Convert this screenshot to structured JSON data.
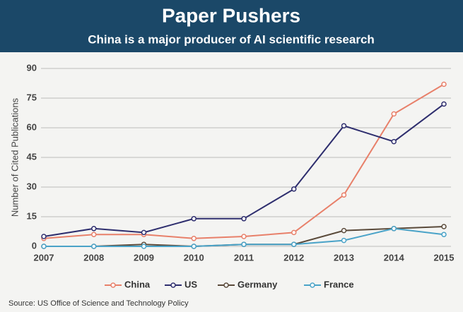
{
  "chart_data": {
    "type": "line",
    "title": "Paper Pushers",
    "subtitle": "China is a major producer of AI scientific research",
    "y_label": "Number of Cited Publications",
    "source": "Source: US Office of Science and Technology Policy",
    "x": [
      2007,
      2008,
      2009,
      2010,
      2011,
      2012,
      2013,
      2014,
      2015
    ],
    "xlim": [
      2007,
      2015
    ],
    "xticks": [
      2007,
      2008,
      2009,
      2010,
      2011,
      2012,
      2013,
      2014,
      2015
    ],
    "ylim": [
      0,
      90
    ],
    "yticks": [
      0,
      15,
      30,
      45,
      60,
      75,
      90
    ],
    "grid": true,
    "legend": "bottom",
    "series": [
      {
        "name": "China",
        "color": "#e8806a",
        "values": [
          4,
          6,
          6,
          4,
          5,
          7,
          26,
          67,
          82
        ]
      },
      {
        "name": "US",
        "color": "#2e2e6e",
        "values": [
          5,
          9,
          7,
          14,
          14,
          29,
          61,
          53,
          72
        ]
      },
      {
        "name": "Germany",
        "color": "#5a4a3a",
        "values": [
          0,
          0,
          1,
          0,
          1,
          1,
          8,
          9,
          10
        ]
      },
      {
        "name": "France",
        "color": "#4aa3c8",
        "values": [
          0,
          0,
          0,
          0,
          1,
          1,
          3,
          9,
          6
        ]
      }
    ]
  }
}
